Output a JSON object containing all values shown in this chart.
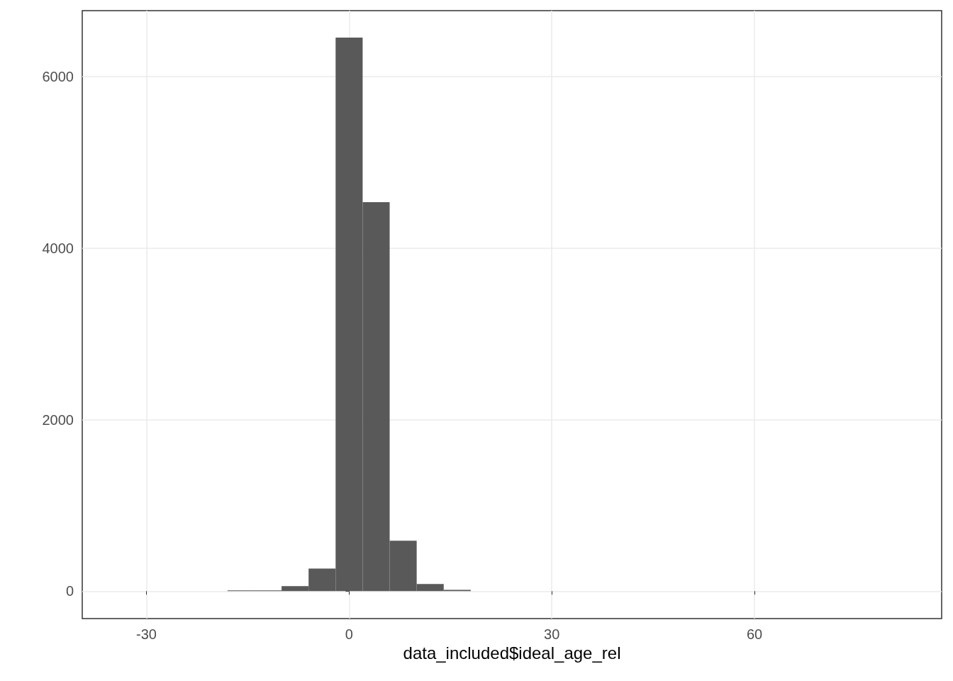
{
  "chart_data": {
    "type": "histogram",
    "xlabel": "data_included$ideal_age_rel",
    "bins": [
      -18,
      -14,
      -10,
      -6,
      -2,
      2,
      6,
      10,
      14,
      18
    ],
    "values": [
      8,
      8,
      58,
      264,
      6455,
      4537,
      587,
      83,
      15
    ],
    "color": "#595959",
    "xlim": [
      -39.5,
      87.7
    ],
    "xticks": [
      -30,
      0,
      30,
      60
    ],
    "ylim": [
      -320,
      6770
    ],
    "yticks": [
      0,
      2000,
      4000,
      6000
    ],
    "grid": true
  }
}
